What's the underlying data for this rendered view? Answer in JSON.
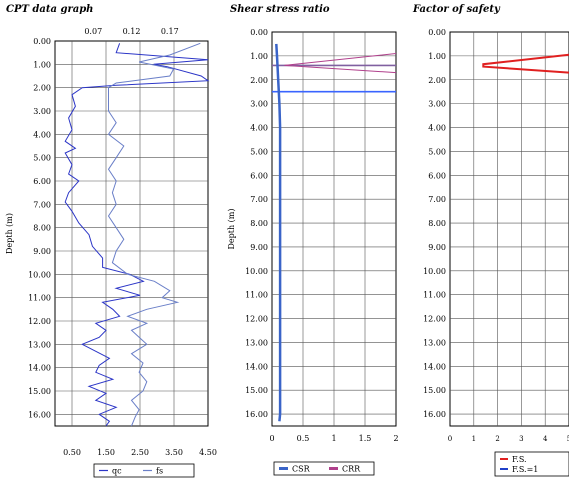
{
  "chart_data": [
    {
      "type": "line",
      "title": "CPT data graph",
      "ylabel": "Depth (m)",
      "ylim": [
        0,
        16.5
      ],
      "y_ticks": [
        "0.00",
        "1.00",
        "2.00",
        "3.00",
        "4.00",
        "5.00",
        "6.00",
        "7.00",
        "8.00",
        "9.00",
        "10.00",
        "11.00",
        "12.00",
        "13.00",
        "14.00",
        "15.00",
        "16.00"
      ],
      "x_bottom_ticks": [
        "0.50",
        "1.50",
        "2.50",
        "3.50",
        "4.50"
      ],
      "x_bottom_range": [
        0,
        4.5
      ],
      "x_top_ticks": [
        "0.07",
        "0.12",
        "0.17"
      ],
      "x_top_range": [
        0.02,
        0.22
      ],
      "grid": true,
      "legend": "bottom",
      "series": [
        {
          "name": "qc",
          "color": "#2b35c7",
          "axis": "bottom",
          "depth": [
            0.1,
            0.5,
            0.8,
            1.0,
            1.1,
            1.5,
            1.7,
            1.9,
            2.0,
            2.3,
            2.8,
            3.3,
            3.8,
            4.3,
            4.6,
            4.8,
            5.3,
            5.7,
            6.0,
            6.5,
            6.9,
            7.3,
            7.8,
            8.3,
            8.8,
            9.3,
            9.7,
            10.0,
            10.3,
            10.6,
            10.9,
            11.2,
            11.5,
            11.8,
            12.1,
            12.4,
            12.7,
            13.0,
            13.3,
            13.6,
            13.9,
            14.2,
            14.5,
            14.8,
            15.1,
            15.4,
            15.7,
            16.0,
            16.3,
            16.5
          ],
          "values": [
            1.9,
            1.8,
            4.5,
            2.9,
            3.3,
            4.3,
            4.5,
            1.8,
            0.8,
            0.5,
            0.6,
            0.4,
            0.5,
            0.3,
            0.6,
            0.3,
            0.5,
            0.4,
            0.7,
            0.4,
            0.3,
            0.5,
            0.7,
            1.0,
            1.1,
            1.4,
            1.4,
            2.2,
            2.6,
            1.8,
            2.5,
            1.4,
            1.7,
            1.9,
            1.2,
            1.5,
            1.3,
            0.8,
            1.2,
            1.6,
            1.3,
            1.2,
            1.7,
            1.0,
            1.5,
            1.2,
            1.8,
            1.3,
            1.6,
            1.5
          ]
        },
        {
          "name": "fs",
          "color": "#6a7fc8",
          "axis": "top",
          "depth": [
            0.1,
            0.6,
            0.9,
            1.2,
            1.5,
            1.8,
            2.0,
            2.5,
            3.0,
            3.5,
            4.0,
            4.5,
            5.0,
            5.5,
            6.0,
            6.5,
            7.0,
            7.5,
            8.0,
            8.5,
            9.0,
            9.5,
            10.0,
            10.3,
            10.7,
            11.0,
            11.2,
            11.5,
            11.8,
            12.1,
            12.4,
            12.7,
            13.0,
            13.4,
            13.8,
            14.2,
            14.6,
            15.0,
            15.4,
            15.8,
            16.1,
            16.5
          ],
          "values": [
            0.21,
            0.17,
            0.13,
            0.175,
            0.17,
            0.1,
            0.09,
            0.09,
            0.09,
            0.1,
            0.09,
            0.11,
            0.1,
            0.09,
            0.1,
            0.095,
            0.1,
            0.09,
            0.1,
            0.11,
            0.1,
            0.095,
            0.115,
            0.15,
            0.17,
            0.16,
            0.18,
            0.14,
            0.115,
            0.14,
            0.12,
            0.13,
            0.14,
            0.12,
            0.135,
            0.13,
            0.14,
            0.135,
            0.12,
            0.13,
            0.125,
            0.12
          ]
        }
      ]
    },
    {
      "type": "line",
      "title": "Shear stress ratio",
      "ylabel": "Depth (m)",
      "ylim": [
        0,
        16.5
      ],
      "y_ticks": [
        "0.00",
        "1.00",
        "2.00",
        "3.00",
        "4.00",
        "5.00",
        "6.00",
        "7.00",
        "8.00",
        "9.00",
        "10.00",
        "11.00",
        "12.00",
        "13.00",
        "14.00",
        "15.00",
        "16.00"
      ],
      "x_ticks": [
        "0",
        "0.5",
        "1",
        "1.5",
        "2"
      ],
      "xlim": [
        0,
        2
      ],
      "grid": true,
      "legend": "bottom",
      "series": [
        {
          "name": "CSR",
          "color": "#3a64c8",
          "depth": [
            0.5,
            1.0,
            1.5,
            2.0,
            2.5,
            3.0,
            4.0,
            6.0,
            8.0,
            10.0,
            12.0,
            14.0,
            16.0,
            16.3
          ],
          "values": [
            0.07,
            0.08,
            0.09,
            0.1,
            0.11,
            0.12,
            0.13,
            0.13,
            0.13,
            0.13,
            0.13,
            0.13,
            0.13,
            0.12
          ]
        },
        {
          "name": "CRR",
          "color": "#b0408c",
          "depth": [
            0.9,
            1.4,
            1.7
          ],
          "values": [
            2.0,
            0.2,
            2.0
          ]
        }
      ],
      "annotations": [
        {
          "type": "hline",
          "depth": 2.5,
          "color": "#3a64ff"
        },
        {
          "type": "hline",
          "depth": 1.4,
          "color": "#8060a0"
        }
      ]
    },
    {
      "type": "line",
      "title": "Factor of safety",
      "ylim": [
        0,
        16.5
      ],
      "y_ticks": [
        "0.00",
        "1.00",
        "2.00",
        "3.00",
        "4.00",
        "5.00",
        "6.00",
        "7.00",
        "8.00",
        "9.00",
        "10.00",
        "11.00",
        "12.00",
        "13.00",
        "14.00",
        "15.00",
        "16.00"
      ],
      "x_ticks": [
        "0",
        "1",
        "2",
        "3",
        "4",
        "5"
      ],
      "xlim": [
        0,
        5
      ],
      "grid": true,
      "legend": "bottom",
      "series": [
        {
          "name": "F.S.",
          "color": "#e02020",
          "depth": [
            0.95,
            1.35,
            1.45,
            1.7
          ],
          "values": [
            5.0,
            1.4,
            1.4,
            5.0
          ]
        },
        {
          "name": "F.S.=1",
          "color": "#2040c8",
          "depth": [],
          "values": []
        }
      ]
    }
  ]
}
